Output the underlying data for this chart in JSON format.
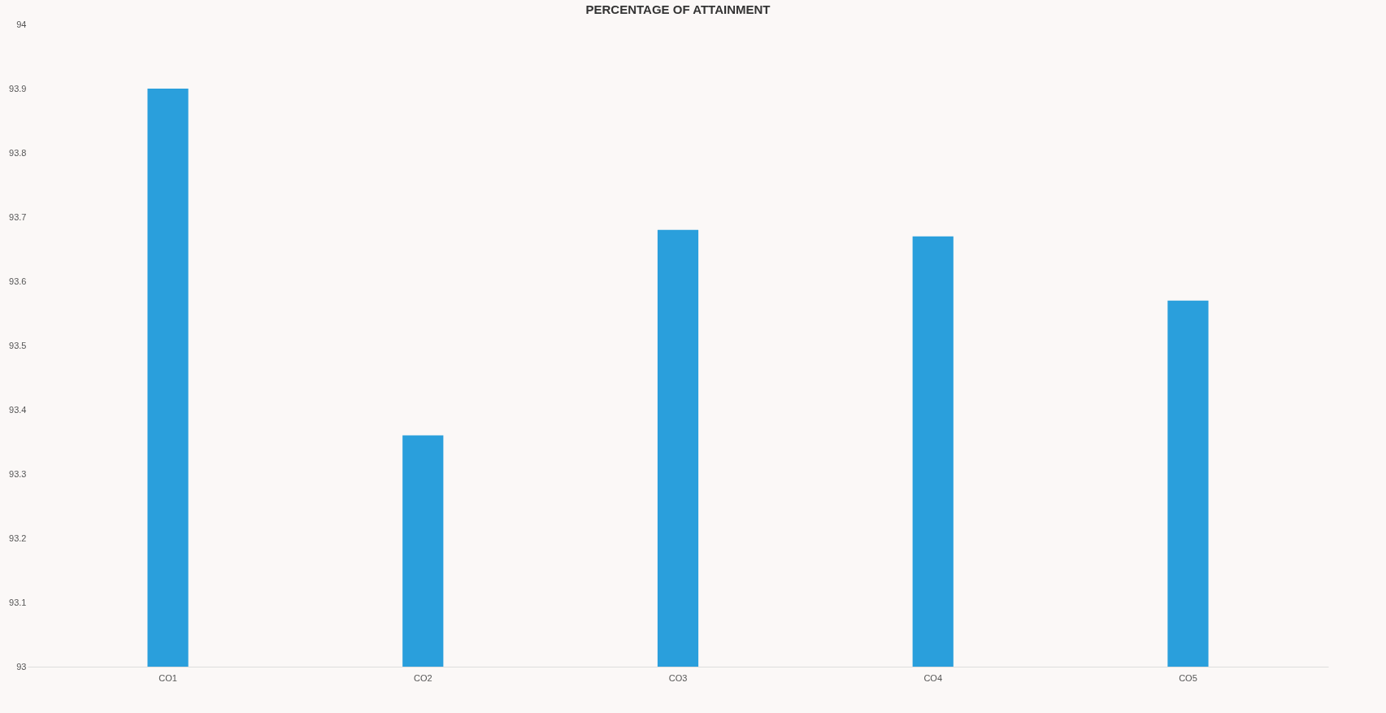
{
  "chart_data": {
    "type": "bar",
    "title": "PERCENTAGE OF ATTAINMENT",
    "categories": [
      "CO1",
      "CO2",
      "CO3",
      "CO4",
      "CO5"
    ],
    "values": [
      93.9,
      93.36,
      93.68,
      93.67,
      93.57
    ],
    "color": "#2a9fdc",
    "ylim": [
      93,
      94
    ],
    "yticks": [
      93,
      93.1,
      93.2,
      93.3,
      93.4,
      93.5,
      93.6,
      93.7,
      93.8,
      93.9,
      94
    ],
    "grid": false
  }
}
